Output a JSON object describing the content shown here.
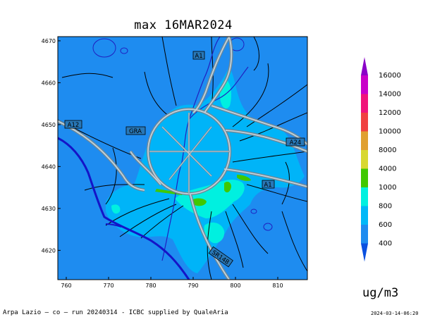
{
  "title": "max 16MAR2024",
  "units": "ug/m3",
  "footer": {
    "left": "Arpa Lazio — co — run 20240314 - ICBC supplied by QualeAria",
    "right": "2024-03-14-06:20"
  },
  "axes": {
    "x_ticks": [
      "760",
      "770",
      "780",
      "790",
      "800",
      "810"
    ],
    "y_ticks": [
      "4670",
      "4660",
      "4650",
      "4640",
      "4630",
      "4620"
    ],
    "x_range": [
      758,
      817
    ],
    "y_range": [
      4613,
      4671
    ]
  },
  "road_labels": [
    {
      "text": "A1",
      "id": "a1-north"
    },
    {
      "text": "A12",
      "id": "a12"
    },
    {
      "text": "GRA",
      "id": "gra"
    },
    {
      "text": "A24",
      "id": "a24"
    },
    {
      "text": "A1",
      "id": "a1-south"
    },
    {
      "text": "SR148",
      "id": "sr148"
    }
  ],
  "colorbar": {
    "levels": [
      "16000",
      "14000",
      "12000",
      "10000",
      "8000",
      "4000",
      "1000",
      "800",
      "600",
      "400"
    ],
    "colors": [
      "#8a00c8",
      "#c800c8",
      "#f0147a",
      "#f04040",
      "#e0a030",
      "#d8d830",
      "#40c800",
      "#00f0e0",
      "#00b8f8",
      "#1e8cf0",
      "#0a50e0"
    ]
  },
  "map_colors": {
    "background": "#1e8cf0",
    "low": "#00b4f8",
    "mid": "#00f0e0",
    "high": "#40c800",
    "sea_line": "#1414c8",
    "roads": "#7890a0"
  }
}
